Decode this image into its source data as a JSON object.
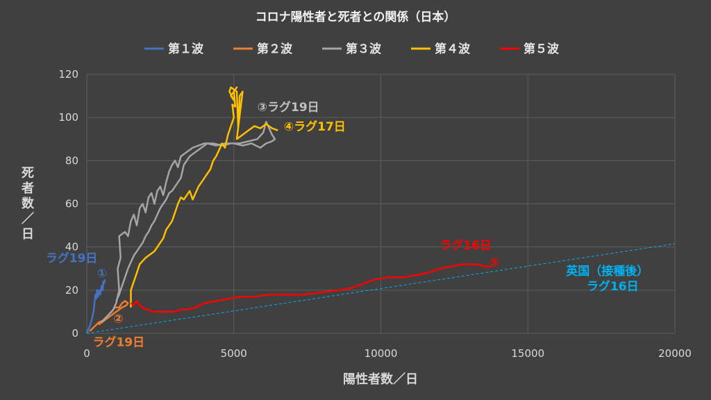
{
  "chart_data": {
    "type": "line",
    "title": "コロナ陽性者と死者との関係（日本）",
    "xlabel": "陽性者数／日",
    "ylabel": "死者数／日",
    "xlim": [
      0,
      20000
    ],
    "ylim": [
      0,
      120
    ],
    "xticks": [
      "0",
      "5000",
      "10000",
      "15000",
      "20000"
    ],
    "yticks": [
      "0",
      "20",
      "40",
      "60",
      "80",
      "100",
      "120"
    ],
    "grid": true,
    "legend_position": "top",
    "series": [
      {
        "name": "第１波",
        "color": "#4472c4",
        "points": [
          [
            0,
            0
          ],
          [
            60,
            2
          ],
          [
            120,
            4
          ],
          [
            180,
            7
          ],
          [
            230,
            10
          ],
          [
            260,
            14
          ],
          [
            300,
            18
          ],
          [
            320,
            16
          ],
          [
            350,
            20
          ],
          [
            380,
            17
          ],
          [
            420,
            20
          ],
          [
            460,
            18
          ],
          [
            500,
            22
          ],
          [
            540,
            20
          ],
          [
            560,
            24
          ],
          [
            580,
            23
          ],
          [
            620,
            25
          ]
        ]
      },
      {
        "name": "第２波",
        "color": "#ed7d31",
        "points": [
          [
            100,
            1
          ],
          [
            250,
            3
          ],
          [
            400,
            5
          ],
          [
            550,
            6
          ],
          [
            700,
            8
          ],
          [
            850,
            10
          ],
          [
            950,
            12
          ],
          [
            1100,
            12
          ],
          [
            1200,
            14
          ],
          [
            1300,
            15
          ],
          [
            1400,
            14
          ],
          [
            1350,
            13
          ],
          [
            1200,
            12
          ],
          [
            1000,
            10
          ],
          [
            800,
            8
          ],
          [
            600,
            6
          ],
          [
            400,
            4
          ]
        ]
      },
      {
        "name": "第３波",
        "color": "#a5a5a5",
        "points": [
          [
            500,
            5
          ],
          [
            700,
            8
          ],
          [
            900,
            11
          ],
          [
            1000,
            14
          ],
          [
            1100,
            20
          ],
          [
            1050,
            30
          ],
          [
            1150,
            35
          ],
          [
            1100,
            45
          ],
          [
            1300,
            47
          ],
          [
            1400,
            45
          ],
          [
            1500,
            52
          ],
          [
            1600,
            55
          ],
          [
            1700,
            50
          ],
          [
            1800,
            58
          ],
          [
            1900,
            60
          ],
          [
            2000,
            56
          ],
          [
            2100,
            63
          ],
          [
            2200,
            65
          ],
          [
            2300,
            60
          ],
          [
            2400,
            66
          ],
          [
            2500,
            68
          ],
          [
            2600,
            64
          ],
          [
            2700,
            70
          ],
          [
            2800,
            75
          ],
          [
            2900,
            78
          ],
          [
            3000,
            80
          ],
          [
            3100,
            77
          ],
          [
            3200,
            82
          ],
          [
            3400,
            84
          ],
          [
            3600,
            86
          ],
          [
            3800,
            87
          ],
          [
            4000,
            88
          ],
          [
            4300,
            88
          ],
          [
            4600,
            87
          ],
          [
            4900,
            88
          ],
          [
            5200,
            88
          ],
          [
            5500,
            89
          ],
          [
            5800,
            90
          ],
          [
            6000,
            93
          ],
          [
            6100,
            98
          ],
          [
            6200,
            95
          ],
          [
            6300,
            92
          ],
          [
            6400,
            90
          ],
          [
            6300,
            89
          ],
          [
            6100,
            88
          ],
          [
            5900,
            86
          ],
          [
            5600,
            88
          ],
          [
            5300,
            87
          ],
          [
            5000,
            88
          ],
          [
            4700,
            88
          ],
          [
            4400,
            87
          ],
          [
            4100,
            88
          ],
          [
            3800,
            85
          ],
          [
            3500,
            82
          ],
          [
            3300,
            78
          ],
          [
            3200,
            72
          ],
          [
            3100,
            70
          ],
          [
            3000,
            68
          ],
          [
            2900,
            66
          ],
          [
            2800,
            65
          ],
          [
            2700,
            62
          ],
          [
            2600,
            60
          ],
          [
            2500,
            58
          ],
          [
            2400,
            55
          ],
          [
            2300,
            52
          ],
          [
            2200,
            50
          ],
          [
            2100,
            47
          ],
          [
            2000,
            45
          ],
          [
            1900,
            42
          ],
          [
            1800,
            40
          ],
          [
            1700,
            38
          ],
          [
            1600,
            36
          ],
          [
            1500,
            33
          ],
          [
            1400,
            30
          ],
          [
            1300,
            26
          ],
          [
            1200,
            22
          ],
          [
            1100,
            18
          ],
          [
            1000,
            15
          ]
        ]
      },
      {
        "name": "第４波",
        "color": "#ffc000",
        "points": [
          [
            1500,
            12
          ],
          [
            1500,
            20
          ],
          [
            1700,
            28
          ],
          [
            1800,
            32
          ],
          [
            2000,
            35
          ],
          [
            2100,
            36
          ],
          [
            2300,
            38
          ],
          [
            2400,
            40
          ],
          [
            2600,
            44
          ],
          [
            2700,
            48
          ],
          [
            2900,
            52
          ],
          [
            3000,
            56
          ],
          [
            3100,
            60
          ],
          [
            3200,
            63
          ],
          [
            3300,
            62
          ],
          [
            3400,
            64
          ],
          [
            3500,
            66
          ],
          [
            3600,
            62
          ],
          [
            3700,
            65
          ],
          [
            3800,
            68
          ],
          [
            3900,
            70
          ],
          [
            4000,
            72
          ],
          [
            4100,
            74
          ],
          [
            4200,
            76
          ],
          [
            4300,
            80
          ],
          [
            4400,
            82
          ],
          [
            4500,
            85
          ],
          [
            4600,
            88
          ],
          [
            4700,
            86
          ],
          [
            4800,
            92
          ],
          [
            4900,
            96
          ],
          [
            5000,
            100
          ],
          [
            4950,
            106
          ],
          [
            5050,
            105
          ],
          [
            5000,
            112
          ],
          [
            5100,
            114
          ],
          [
            4900,
            110
          ],
          [
            5000,
            108
          ],
          [
            4850,
            112
          ],
          [
            4900,
            114
          ],
          [
            5100,
            112
          ],
          [
            5150,
            95
          ],
          [
            5200,
            110
          ],
          [
            5300,
            112
          ],
          [
            5100,
            90
          ],
          [
            5300,
            92
          ],
          [
            5500,
            94
          ],
          [
            5700,
            96
          ],
          [
            5900,
            95
          ],
          [
            6100,
            97
          ],
          [
            6300,
            95
          ],
          [
            6500,
            94
          ]
        ]
      },
      {
        "name": "第５波",
        "color": "#ff0000",
        "points": [
          [
            1500,
            14
          ],
          [
            1600,
            13
          ],
          [
            1700,
            15
          ],
          [
            1800,
            13
          ],
          [
            1900,
            12
          ],
          [
            2000,
            11
          ],
          [
            2100,
            11
          ],
          [
            2200,
            10
          ],
          [
            2400,
            10
          ],
          [
            2600,
            10
          ],
          [
            2800,
            10
          ],
          [
            3000,
            10
          ],
          [
            3200,
            11
          ],
          [
            3400,
            11
          ],
          [
            3700,
            12
          ],
          [
            4000,
            14
          ],
          [
            4400,
            15
          ],
          [
            4800,
            16
          ],
          [
            5200,
            17
          ],
          [
            5700,
            17
          ],
          [
            6200,
            18
          ],
          [
            6800,
            18
          ],
          [
            7400,
            18
          ],
          [
            8000,
            19
          ],
          [
            8600,
            20
          ],
          [
            9000,
            21
          ],
          [
            9400,
            23
          ],
          [
            9800,
            25
          ],
          [
            10300,
            26
          ],
          [
            10800,
            26
          ],
          [
            11200,
            27
          ],
          [
            11600,
            28
          ],
          [
            12000,
            30
          ],
          [
            12400,
            31
          ],
          [
            12800,
            32
          ],
          [
            13200,
            32
          ],
          [
            13600,
            31
          ],
          [
            13800,
            31
          ]
        ]
      },
      {
        "name": "英国（接種後）",
        "color": "#00b0f0",
        "dashed": true,
        "points": [
          [
            0,
            0
          ],
          [
            20000,
            41.5
          ]
        ]
      }
    ],
    "annotations": [
      {
        "text": "③ラグ19日",
        "color": "#bfbfbf",
        "x": 5800,
        "y": 103
      },
      {
        "text": "④ラグ17日",
        "color": "#ffc000",
        "x": 6700,
        "y": 94
      },
      {
        "text": "ラグ19日",
        "color": "#4472c4",
        "x": -1400,
        "y": 33
      },
      {
        "text": "①",
        "color": "#4472c4",
        "x": 350,
        "y": 26
      },
      {
        "text": "②",
        "color": "#ed7d31",
        "x": 900,
        "y": 5
      },
      {
        "text": "ラグ19日",
        "color": "#ed7d31",
        "x": 200,
        "y": -6
      },
      {
        "text": "ラグ16日",
        "color": "#ff0000",
        "x": 12000,
        "y": 39
      },
      {
        "text": "⑤",
        "color": "#ff0000",
        "x": 13700,
        "y": 31
      },
      {
        "text": "英国（接種後）",
        "color": "#00b0f0",
        "x": 16300,
        "y": 27
      },
      {
        "text": "ラグ16日",
        "color": "#00b0f0",
        "x": 17000,
        "y": 20
      }
    ]
  }
}
